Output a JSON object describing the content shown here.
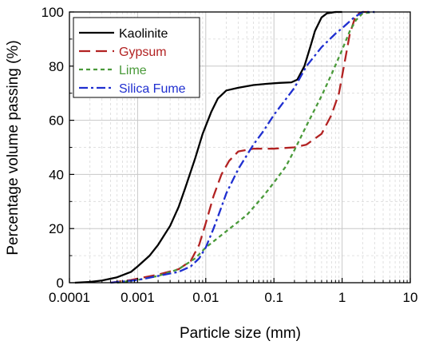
{
  "chart_data": {
    "type": "line",
    "title": "",
    "xlabel": "Particle size (mm)",
    "ylabel": "Percentage volume passing (%)",
    "x_scale": "log",
    "xlim": [
      0.0001,
      10
    ],
    "ylim": [
      0,
      100
    ],
    "grid": true,
    "legend_position": "top-left",
    "x_ticks": [
      {
        "value": 0.0001,
        "label": "0.0001"
      },
      {
        "value": 0.001,
        "label": "0.001"
      },
      {
        "value": 0.01,
        "label": "0.01"
      },
      {
        "value": 0.1,
        "label": "0.1"
      },
      {
        "value": 1,
        "label": "1"
      },
      {
        "value": 10,
        "label": "10"
      }
    ],
    "y_ticks": [
      {
        "value": 0,
        "label": "0"
      },
      {
        "value": 20,
        "label": "20"
      },
      {
        "value": 40,
        "label": "40"
      },
      {
        "value": 60,
        "label": "60"
      },
      {
        "value": 80,
        "label": "80"
      },
      {
        "value": 100,
        "label": "100"
      }
    ],
    "series": [
      {
        "name": "Kaolinite",
        "color": "#000000",
        "dash": "solid",
        "points": [
          [
            0.00012,
            0
          ],
          [
            0.0002,
            0.3
          ],
          [
            0.0003,
            0.8
          ],
          [
            0.0005,
            2
          ],
          [
            0.0008,
            4
          ],
          [
            0.001,
            6
          ],
          [
            0.0015,
            10
          ],
          [
            0.002,
            14
          ],
          [
            0.003,
            21
          ],
          [
            0.004,
            28
          ],
          [
            0.005,
            35
          ],
          [
            0.007,
            46
          ],
          [
            0.009,
            55
          ],
          [
            0.012,
            63
          ],
          [
            0.015,
            68
          ],
          [
            0.02,
            71
          ],
          [
            0.03,
            72
          ],
          [
            0.05,
            73
          ],
          [
            0.08,
            73.5
          ],
          [
            0.12,
            73.8
          ],
          [
            0.18,
            74
          ],
          [
            0.22,
            75
          ],
          [
            0.28,
            80
          ],
          [
            0.35,
            88
          ],
          [
            0.4,
            93
          ],
          [
            0.5,
            98
          ],
          [
            0.6,
            99.5
          ],
          [
            0.8,
            100
          ],
          [
            1,
            100
          ]
        ]
      },
      {
        "name": "Gypsum",
        "color": "#b22222",
        "dash": "long-dash",
        "points": [
          [
            0.0004,
            0
          ],
          [
            0.0008,
            1
          ],
          [
            0.001,
            1.5
          ],
          [
            0.002,
            3
          ],
          [
            0.004,
            5
          ],
          [
            0.006,
            8
          ],
          [
            0.008,
            14
          ],
          [
            0.01,
            22
          ],
          [
            0.013,
            32
          ],
          [
            0.017,
            40
          ],
          [
            0.022,
            45
          ],
          [
            0.03,
            48.5
          ],
          [
            0.05,
            49.5
          ],
          [
            0.1,
            49.5
          ],
          [
            0.2,
            50
          ],
          [
            0.3,
            51
          ],
          [
            0.5,
            55
          ],
          [
            0.7,
            62
          ],
          [
            0.9,
            70
          ],
          [
            1.1,
            82
          ],
          [
            1.3,
            92
          ],
          [
            1.6,
            99
          ],
          [
            2,
            100
          ],
          [
            3,
            100
          ]
        ]
      },
      {
        "name": "Lime",
        "color": "#4a9a3a",
        "dash": "short-dash",
        "points": [
          [
            0.0005,
            0
          ],
          [
            0.001,
            1
          ],
          [
            0.002,
            2.5
          ],
          [
            0.004,
            5
          ],
          [
            0.007,
            9
          ],
          [
            0.01,
            13
          ],
          [
            0.02,
            19
          ],
          [
            0.04,
            25
          ],
          [
            0.07,
            32
          ],
          [
            0.1,
            37
          ],
          [
            0.15,
            43
          ],
          [
            0.2,
            49
          ],
          [
            0.3,
            58
          ],
          [
            0.5,
            69
          ],
          [
            0.7,
            77
          ],
          [
            1,
            86
          ],
          [
            1.3,
            93
          ],
          [
            1.6,
            97
          ],
          [
            2,
            99.5
          ],
          [
            3,
            100
          ]
        ]
      },
      {
        "name": "Silica Fume",
        "color": "#1f2fd0",
        "dash": "dash-dot",
        "points": [
          [
            0.0004,
            0
          ],
          [
            0.001,
            1
          ],
          [
            0.002,
            2.5
          ],
          [
            0.004,
            4
          ],
          [
            0.006,
            6
          ],
          [
            0.008,
            9
          ],
          [
            0.01,
            13
          ],
          [
            0.013,
            20
          ],
          [
            0.017,
            28
          ],
          [
            0.02,
            33
          ],
          [
            0.03,
            42
          ],
          [
            0.05,
            51
          ],
          [
            0.07,
            56
          ],
          [
            0.1,
            62
          ],
          [
            0.2,
            72
          ],
          [
            0.3,
            80
          ],
          [
            0.5,
            87
          ],
          [
            0.8,
            92
          ],
          [
            1,
            94
          ],
          [
            1.5,
            98
          ],
          [
            2,
            100
          ],
          [
            3,
            100
          ]
        ]
      }
    ]
  }
}
